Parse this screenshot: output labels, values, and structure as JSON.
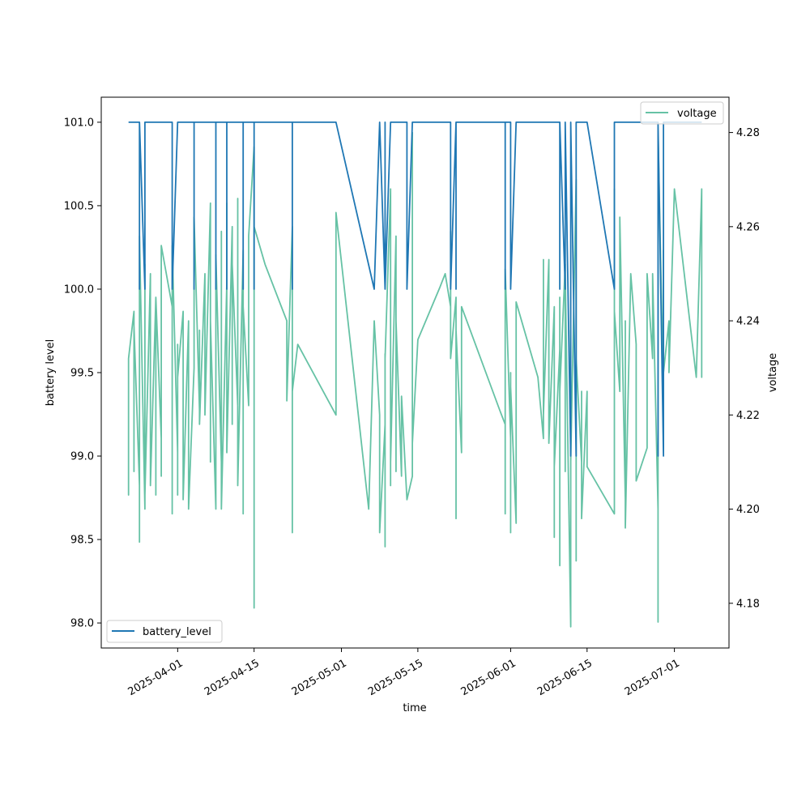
{
  "chart_data": {
    "type": "line",
    "title": "",
    "xlabel": "time",
    "ylabel_left": "battery level",
    "ylabel_right": "voltage",
    "x_ticks": [
      "2025-04-01",
      "2025-04-15",
      "2025-05-01",
      "2025-05-15",
      "2025-06-01",
      "2025-06-15",
      "2025-07-01"
    ],
    "y_left_ticks": [
      "98.0",
      "98.5",
      "99.0",
      "99.5",
      "100.0",
      "100.5",
      "101.0"
    ],
    "y_right_ticks": [
      "4.18",
      "4.20",
      "4.22",
      "4.24",
      "4.26",
      "4.28"
    ],
    "xlim": [
      "2025-03-18",
      "2025-07-11"
    ],
    "ylim_left": [
      97.85,
      101.15
    ],
    "ylim_right": [
      4.1705,
      4.2875
    ],
    "grid": false,
    "series": [
      {
        "name": "battery_level",
        "axis": "left",
        "color": "#1f77b4",
        "legend_position": "lower-left",
        "points": [
          [
            "2025-03-23",
            101
          ],
          [
            "2025-03-25",
            101
          ],
          [
            "2025-03-25",
            100
          ],
          [
            "2025-03-25",
            101
          ],
          [
            "2025-03-26",
            100
          ],
          [
            "2025-03-26",
            101
          ],
          [
            "2025-03-31",
            101
          ],
          [
            "2025-03-31",
            100
          ],
          [
            "2025-04-01",
            101
          ],
          [
            "2025-04-04",
            101
          ],
          [
            "2025-04-04",
            100
          ],
          [
            "2025-04-04",
            101
          ],
          [
            "2025-04-08",
            101
          ],
          [
            "2025-04-08",
            100
          ],
          [
            "2025-04-08",
            101
          ],
          [
            "2025-04-10",
            101
          ],
          [
            "2025-04-10",
            100
          ],
          [
            "2025-04-10",
            101
          ],
          [
            "2025-04-13",
            101
          ],
          [
            "2025-04-13",
            100
          ],
          [
            "2025-04-13",
            101
          ],
          [
            "2025-04-15",
            101
          ],
          [
            "2025-04-15",
            100
          ],
          [
            "2025-04-15",
            101
          ],
          [
            "2025-04-22",
            101
          ],
          [
            "2025-04-22",
            100
          ],
          [
            "2025-04-22",
            101
          ],
          [
            "2025-04-30",
            101
          ],
          [
            "2025-05-07",
            100
          ],
          [
            "2025-05-08",
            101
          ],
          [
            "2025-05-08",
            101
          ],
          [
            "2025-05-09",
            100
          ],
          [
            "2025-05-09",
            101
          ],
          [
            "2025-05-09",
            100
          ],
          [
            "2025-05-10",
            101
          ],
          [
            "2025-05-13",
            101
          ],
          [
            "2025-05-13",
            100
          ],
          [
            "2025-05-14",
            101
          ],
          [
            "2025-05-21",
            101
          ],
          [
            "2025-05-21",
            100
          ],
          [
            "2025-05-22",
            101
          ],
          [
            "2025-05-22",
            100
          ],
          [
            "2025-05-22",
            101
          ],
          [
            "2025-05-31",
            101
          ],
          [
            "2025-05-31",
            100
          ],
          [
            "2025-05-31",
            101
          ],
          [
            "2025-06-01",
            101
          ],
          [
            "2025-06-01",
            100
          ],
          [
            "2025-06-02",
            101
          ],
          [
            "2025-06-10",
            101
          ],
          [
            "2025-06-10",
            100
          ],
          [
            "2025-06-10",
            101
          ],
          [
            "2025-06-11",
            100
          ],
          [
            "2025-06-11",
            101
          ],
          [
            "2025-06-12",
            99
          ],
          [
            "2025-06-12",
            101
          ],
          [
            "2025-06-13",
            99
          ],
          [
            "2025-06-13",
            101
          ],
          [
            "2025-06-15",
            101
          ],
          [
            "2025-06-15",
            101
          ],
          [
            "2025-06-20",
            100
          ],
          [
            "2025-06-20",
            101
          ],
          [
            "2025-06-22",
            101
          ],
          [
            "2025-06-23",
            101
          ],
          [
            "2025-06-28",
            101
          ],
          [
            "2025-06-28",
            99
          ],
          [
            "2025-06-28",
            101
          ],
          [
            "2025-06-28",
            100
          ],
          [
            "2025-06-28",
            101
          ],
          [
            "2025-06-29",
            99
          ],
          [
            "2025-06-29",
            101
          ],
          [
            "2025-07-06",
            101
          ]
        ]
      },
      {
        "name": "voltage",
        "axis": "right",
        "color": "#66c2a5",
        "legend_position": "upper-right",
        "points": [
          [
            "2025-03-23",
            4.21
          ],
          [
            "2025-03-23",
            4.203
          ],
          [
            "2025-03-23",
            4.232
          ],
          [
            "2025-03-24",
            4.242
          ],
          [
            "2025-03-24",
            4.208
          ],
          [
            "2025-03-24",
            4.239
          ],
          [
            "2025-03-25",
            4.205
          ],
          [
            "2025-03-25",
            4.245
          ],
          [
            "2025-03-25",
            4.193
          ],
          [
            "2025-03-25",
            4.258
          ],
          [
            "2025-03-26",
            4.2
          ],
          [
            "2025-03-26",
            4.252
          ],
          [
            "2025-03-26",
            4.203
          ],
          [
            "2025-03-27",
            4.25
          ],
          [
            "2025-03-27",
            4.208
          ],
          [
            "2025-03-27",
            4.228
          ],
          [
            "2025-03-27",
            4.205
          ],
          [
            "2025-03-28",
            4.245
          ],
          [
            "2025-03-28",
            4.203
          ],
          [
            "2025-03-28",
            4.245
          ],
          [
            "2025-03-29",
            4.215
          ],
          [
            "2025-03-29",
            4.252
          ],
          [
            "2025-03-29",
            4.207
          ],
          [
            "2025-03-29",
            4.256
          ],
          [
            "2025-03-31",
            4.243
          ],
          [
            "2025-03-31",
            4.199
          ],
          [
            "2025-03-31",
            4.256
          ],
          [
            "2025-04-01",
            4.212
          ],
          [
            "2025-04-01",
            4.235
          ],
          [
            "2025-04-01",
            4.203
          ],
          [
            "2025-04-01",
            4.228
          ],
          [
            "2025-04-02",
            4.242
          ],
          [
            "2025-04-02",
            4.202
          ],
          [
            "2025-04-03",
            4.24
          ],
          [
            "2025-04-03",
            4.2
          ],
          [
            "2025-04-04",
            4.23
          ],
          [
            "2025-04-04",
            4.262
          ],
          [
            "2025-04-05",
            4.221
          ],
          [
            "2025-04-05",
            4.238
          ],
          [
            "2025-04-05",
            4.218
          ],
          [
            "2025-04-06",
            4.25
          ],
          [
            "2025-04-06",
            4.22
          ],
          [
            "2025-04-07",
            4.265
          ],
          [
            "2025-04-07",
            4.21
          ],
          [
            "2025-04-07",
            4.24
          ],
          [
            "2025-04-08",
            4.2
          ],
          [
            "2025-04-08",
            4.254
          ],
          [
            "2025-04-09",
            4.21
          ],
          [
            "2025-04-09",
            4.259
          ],
          [
            "2025-04-09",
            4.2
          ],
          [
            "2025-04-10",
            4.248
          ],
          [
            "2025-04-10",
            4.215
          ],
          [
            "2025-04-10",
            4.265
          ],
          [
            "2025-04-10",
            4.212
          ],
          [
            "2025-04-11",
            4.26
          ],
          [
            "2025-04-11",
            4.218
          ],
          [
            "2025-04-11",
            4.252
          ],
          [
            "2025-04-12",
            4.222
          ],
          [
            "2025-04-12",
            4.266
          ],
          [
            "2025-04-12",
            4.205
          ],
          [
            "2025-04-13",
            4.255
          ],
          [
            "2025-04-13",
            4.199
          ],
          [
            "2025-04-13",
            4.243
          ],
          [
            "2025-04-14",
            4.222
          ],
          [
            "2025-04-14",
            4.258
          ],
          [
            "2025-04-15",
            4.277
          ],
          [
            "2025-04-15",
            4.179
          ],
          [
            "2025-04-15",
            4.26
          ],
          [
            "2025-04-17",
            4.252
          ],
          [
            "2025-04-21",
            4.24
          ],
          [
            "2025-04-21",
            4.223
          ],
          [
            "2025-04-22",
            4.26
          ],
          [
            "2025-04-22",
            4.195
          ],
          [
            "2025-04-22",
            4.225
          ],
          [
            "2025-04-23",
            4.235
          ],
          [
            "2025-04-30",
            4.22
          ],
          [
            "2025-04-30",
            4.263
          ],
          [
            "2025-05-06",
            4.2
          ],
          [
            "2025-05-07",
            4.24
          ],
          [
            "2025-05-07",
            4.24
          ],
          [
            "2025-05-08",
            4.22
          ],
          [
            "2025-05-08",
            4.195
          ],
          [
            "2025-05-09",
            4.218
          ],
          [
            "2025-05-09",
            4.192
          ],
          [
            "2025-05-09",
            4.233
          ],
          [
            "2025-05-09",
            4.203
          ],
          [
            "2025-05-09",
            4.232
          ],
          [
            "2025-05-10",
            4.268
          ],
          [
            "2025-05-10",
            4.205
          ],
          [
            "2025-05-10",
            4.265
          ],
          [
            "2025-05-10",
            4.21
          ],
          [
            "2025-05-11",
            4.258
          ],
          [
            "2025-05-11",
            4.208
          ],
          [
            "2025-05-11",
            4.24
          ],
          [
            "2025-05-12",
            4.207
          ],
          [
            "2025-05-12",
            4.224
          ],
          [
            "2025-05-13",
            4.202
          ],
          [
            "2025-05-14",
            4.207
          ],
          [
            "2025-05-14",
            4.28
          ],
          [
            "2025-05-14",
            4.214
          ],
          [
            "2025-05-15",
            4.236
          ],
          [
            "2025-05-19",
            4.247
          ],
          [
            "2025-05-20",
            4.25
          ],
          [
            "2025-05-21",
            4.243
          ],
          [
            "2025-05-21",
            4.259
          ],
          [
            "2025-05-21",
            4.232
          ],
          [
            "2025-05-22",
            4.245
          ],
          [
            "2025-05-22",
            4.2
          ],
          [
            "2025-05-22",
            4.198
          ],
          [
            "2025-05-22",
            4.238
          ],
          [
            "2025-05-23",
            4.212
          ],
          [
            "2025-05-23",
            4.243
          ],
          [
            "2025-05-30",
            4.221
          ],
          [
            "2025-05-31",
            4.218
          ],
          [
            "2025-05-31",
            4.2
          ],
          [
            "2025-05-31",
            4.222
          ],
          [
            "2025-05-31",
            4.199
          ],
          [
            "2025-05-31",
            4.251
          ],
          [
            "2025-06-01",
            4.215
          ],
          [
            "2025-06-01",
            4.195
          ],
          [
            "2025-06-01",
            4.229
          ],
          [
            "2025-06-01",
            4.21
          ],
          [
            "2025-06-01",
            4.226
          ],
          [
            "2025-06-02",
            4.197
          ],
          [
            "2025-06-02",
            4.24
          ],
          [
            "2025-06-02",
            4.205
          ],
          [
            "2025-06-02",
            4.244
          ],
          [
            "2025-06-06",
            4.228
          ],
          [
            "2025-06-07",
            4.215
          ],
          [
            "2025-06-07",
            4.253
          ],
          [
            "2025-06-07",
            4.22
          ],
          [
            "2025-06-08",
            4.253
          ],
          [
            "2025-06-08",
            4.214
          ],
          [
            "2025-06-09",
            4.243
          ],
          [
            "2025-06-09",
            4.194
          ],
          [
            "2025-06-09",
            4.235
          ],
          [
            "2025-06-09",
            4.209
          ],
          [
            "2025-06-10",
            4.234
          ],
          [
            "2025-06-10",
            4.188
          ],
          [
            "2025-06-10",
            4.245
          ],
          [
            "2025-06-10",
            4.225
          ],
          [
            "2025-06-11",
            4.252
          ],
          [
            "2025-06-11",
            4.208
          ],
          [
            "2025-06-11",
            4.25
          ],
          [
            "2025-06-12",
            4.175
          ],
          [
            "2025-06-12",
            4.238
          ],
          [
            "2025-06-12",
            4.21
          ],
          [
            "2025-06-13",
            4.27
          ],
          [
            "2025-06-13",
            4.189
          ],
          [
            "2025-06-13",
            4.232
          ],
          [
            "2025-06-14",
            4.21
          ],
          [
            "2025-06-14",
            4.225
          ],
          [
            "2025-06-14",
            4.198
          ],
          [
            "2025-06-15",
            4.225
          ],
          [
            "2025-06-15",
            4.209
          ],
          [
            "2025-06-20",
            4.199
          ],
          [
            "2025-06-20",
            4.268
          ],
          [
            "2025-06-20",
            4.242
          ],
          [
            "2025-06-21",
            4.225
          ],
          [
            "2025-06-21",
            4.262
          ],
          [
            "2025-06-22",
            4.202
          ],
          [
            "2025-06-22",
            4.24
          ],
          [
            "2025-06-22",
            4.196
          ],
          [
            "2025-06-23",
            4.25
          ],
          [
            "2025-06-24",
            4.235
          ],
          [
            "2025-06-24",
            4.206
          ],
          [
            "2025-06-26",
            4.213
          ],
          [
            "2025-06-26",
            4.25
          ],
          [
            "2025-06-27",
            4.232
          ],
          [
            "2025-06-27",
            4.25
          ],
          [
            "2025-06-28",
            4.2
          ],
          [
            "2025-06-28",
            4.263
          ],
          [
            "2025-06-28",
            4.176
          ],
          [
            "2025-06-28",
            4.28
          ],
          [
            "2025-06-29",
            4.224
          ],
          [
            "2025-06-29",
            4.255
          ],
          [
            "2025-06-29",
            4.229
          ],
          [
            "2025-06-30",
            4.24
          ],
          [
            "2025-06-30",
            4.229
          ],
          [
            "2025-07-01",
            4.268
          ],
          [
            "2025-07-05",
            4.228
          ],
          [
            "2025-07-06",
            4.268
          ],
          [
            "2025-07-06",
            4.228
          ],
          [
            "2025-07-06",
            4.231
          ]
        ]
      }
    ]
  }
}
